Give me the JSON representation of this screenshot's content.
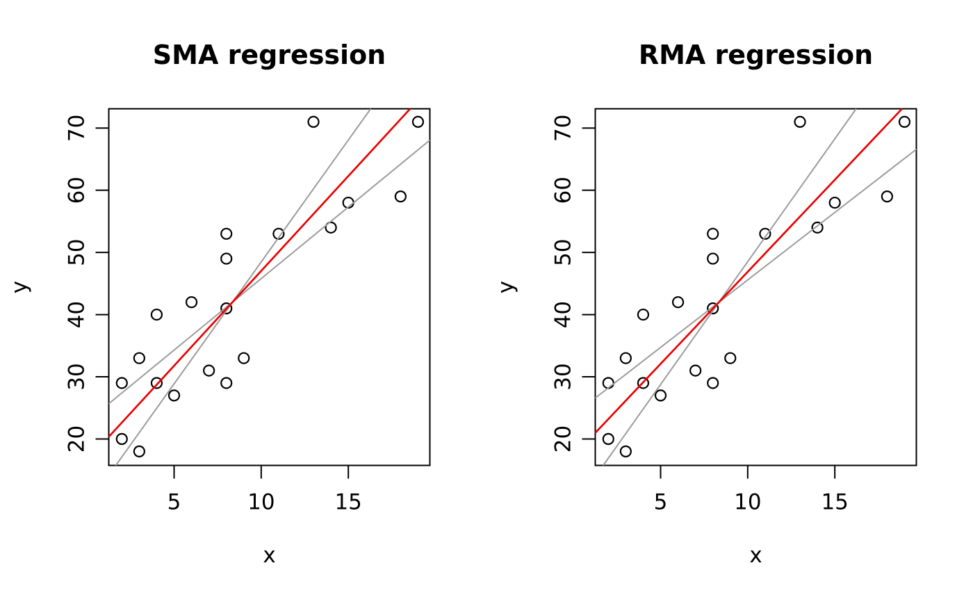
{
  "figure": {
    "background": "#ffffff",
    "description": "Two-panel base-R scatter plots comparing model II regression fits"
  },
  "colors": {
    "regression_line": "#ec0000",
    "confidence_line": "#9b9b9b",
    "points": "#000000",
    "axis": "#000000"
  },
  "chart_data": [
    {
      "type": "scatter",
      "title": "SMA regression",
      "xlabel": "x",
      "ylabel": "y",
      "x": [
        2,
        2,
        3,
        3,
        4,
        4,
        5,
        6,
        7,
        8,
        8,
        8,
        8,
        9,
        11,
        13,
        14,
        15,
        18,
        19
      ],
      "y": [
        20,
        29,
        18,
        33,
        29,
        40,
        27,
        42,
        31,
        29,
        41,
        49,
        53,
        33,
        53,
        71,
        54,
        58,
        59,
        71
      ],
      "xlim": [
        1.25,
        19.68
      ],
      "ylim": [
        15.75,
        73.1
      ],
      "x_ticks": [
        5,
        10,
        15
      ],
      "y_ticks": [
        20,
        30,
        40,
        50,
        60,
        70
      ],
      "grid": false,
      "legend": null,
      "point_style": "open-circle",
      "centroid": {
        "x": 8.35,
        "y": 42
      },
      "lines": [
        {
          "name": "ci-lower",
          "role": "confidence",
          "slope": 2.3,
          "color": "#9b9b9b"
        },
        {
          "name": "ci-upper",
          "role": "confidence",
          "slope": 3.92,
          "color": "#9b9b9b"
        },
        {
          "name": "sma-regression",
          "role": "regression",
          "slope": 3.05,
          "color": "#ec0000"
        }
      ]
    },
    {
      "type": "scatter",
      "title": "RMA regression",
      "xlabel": "x",
      "ylabel": "y",
      "x": [
        2,
        2,
        3,
        3,
        4,
        4,
        5,
        6,
        7,
        8,
        8,
        8,
        8,
        9,
        11,
        13,
        14,
        15,
        18,
        19
      ],
      "y": [
        20,
        29,
        18,
        33,
        29,
        40,
        27,
        42,
        31,
        29,
        41,
        49,
        53,
        33,
        53,
        71,
        54,
        58,
        59,
        71
      ],
      "xlim": [
        1.25,
        19.68
      ],
      "ylim": [
        15.75,
        73.1
      ],
      "x_ticks": [
        5,
        10,
        15
      ],
      "y_ticks": [
        20,
        30,
        40,
        50,
        60,
        70
      ],
      "grid": false,
      "legend": null,
      "point_style": "open-circle",
      "centroid": {
        "x": 8.35,
        "y": 42
      },
      "lines": [
        {
          "name": "ci-lower",
          "role": "confidence",
          "slope": 2.17,
          "color": "#9b9b9b"
        },
        {
          "name": "ci-upper",
          "role": "confidence",
          "slope": 3.95,
          "color": "#9b9b9b"
        },
        {
          "name": "rma-regression",
          "role": "regression",
          "slope": 2.96,
          "color": "#ec0000"
        }
      ]
    }
  ]
}
